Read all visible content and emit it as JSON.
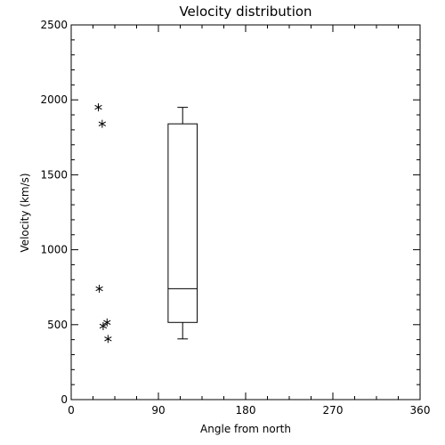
{
  "chart_data": {
    "type": "scatter",
    "title": "Velocity distribution",
    "xlabel": "Angle from north",
    "ylabel": "Velocity (km/s)",
    "xlim": [
      0,
      360
    ],
    "ylim": [
      0,
      2500
    ],
    "xticks": [
      "0",
      "90",
      "180",
      "270",
      "360"
    ],
    "yticks": [
      "0",
      "500",
      "1000",
      "1500",
      "2000",
      "2500"
    ],
    "grid": false,
    "points": [
      {
        "x": 28,
        "y": 1950
      },
      {
        "x": 32,
        "y": 1840
      },
      {
        "x": 29,
        "y": 740
      },
      {
        "x": 37,
        "y": 515
      },
      {
        "x": 33,
        "y": 490
      },
      {
        "x": 38,
        "y": 405
      }
    ],
    "box": {
      "x_center": 115,
      "width": 30,
      "min": 405,
      "q1": 515,
      "median": 740,
      "q3": 1840,
      "max": 1950
    }
  }
}
